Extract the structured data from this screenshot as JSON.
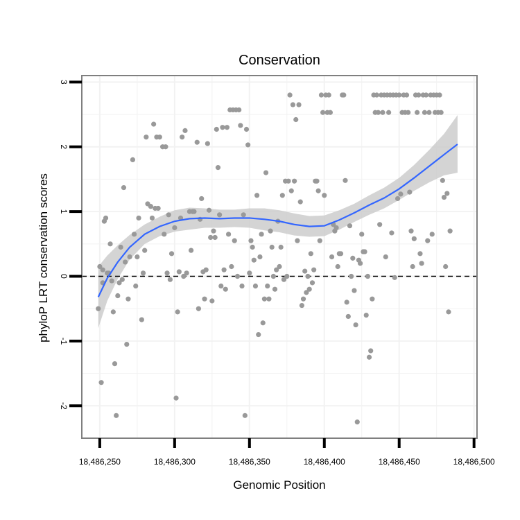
{
  "chart_data": {
    "type": "scatter",
    "title": "Conservation",
    "xlabel": "Genomic Position",
    "ylabel": "phyloP LRT conservation scores",
    "xlim": [
      18486238,
      18486502
    ],
    "ylim": [
      -2.5,
      3.1
    ],
    "x_ticks": [
      18486250,
      18486300,
      18486350,
      18486400,
      18486450,
      18486500
    ],
    "x_tick_labels": [
      "18,486,250",
      "18,486,300",
      "18,486,350",
      "18,486,400",
      "18,486,450",
      "18,486,500"
    ],
    "y_ticks": [
      -2,
      -1,
      0,
      1,
      2,
      3
    ],
    "y_tick_labels": [
      "-2",
      "-1",
      "0",
      "1",
      "2",
      "3"
    ],
    "grid": true,
    "reference_line": {
      "y": 0,
      "style": "dashed"
    },
    "colors": {
      "points": "#999999",
      "smooth": "#3366ff",
      "band": "#cccccc",
      "grid": "#f2f2f2",
      "frame": "#7f7f7f"
    },
    "points": [
      [
        18486249,
        -0.5
      ],
      [
        18486250,
        0.15
      ],
      [
        18486251,
        -1.64
      ],
      [
        18486252,
        0.1
      ],
      [
        18486252,
        -0.1
      ],
      [
        18486253,
        0.85
      ],
      [
        18486254,
        0.9
      ],
      [
        18486255,
        0.05
      ],
      [
        18486256,
        0.05
      ],
      [
        18486257,
        0.5
      ],
      [
        18486258,
        -0.07
      ],
      [
        18486259,
        -0.55
      ],
      [
        18486260,
        -1.35
      ],
      [
        18486261,
        -2.15
      ],
      [
        18486262,
        -0.3
      ],
      [
        18486263,
        -0.1
      ],
      [
        18486264,
        0.45
      ],
      [
        18486265,
        -0.05
      ],
      [
        18486266,
        1.37
      ],
      [
        18486267,
        0.22
      ],
      [
        18486268,
        -1.05
      ],
      [
        18486269,
        -0.35
      ],
      [
        18486270,
        0.3
      ],
      [
        18486272,
        1.8
      ],
      [
        18486273,
        0.65
      ],
      [
        18486274,
        -0.15
      ],
      [
        18486275,
        0.3
      ],
      [
        18486276,
        0.9
      ],
      [
        18486278,
        -0.67
      ],
      [
        18486279,
        0.05
      ],
      [
        18486280,
        0.4
      ],
      [
        18486281,
        2.15
      ],
      [
        18486282,
        1.12
      ],
      [
        18486284,
        1.08
      ],
      [
        18486285,
        0.9
      ],
      [
        18486286,
        2.35
      ],
      [
        18486287,
        1.05
      ],
      [
        18486288,
        2.15
      ],
      [
        18486289,
        1.05
      ],
      [
        18486290,
        2.15
      ],
      [
        18486292,
        2.0
      ],
      [
        18486293,
        0.65
      ],
      [
        18486294,
        2.0
      ],
      [
        18486295,
        0.05
      ],
      [
        18486296,
        0.95
      ],
      [
        18486297,
        -0.05
      ],
      [
        18486298,
        0.35
      ],
      [
        18486300,
        0.75
      ],
      [
        18486301,
        -1.88
      ],
      [
        18486302,
        -0.55
      ],
      [
        18486303,
        0.07
      ],
      [
        18486304,
        0.9
      ],
      [
        18486305,
        2.15
      ],
      [
        18486306,
        0.0
      ],
      [
        18486307,
        2.25
      ],
      [
        18486308,
        0.05
      ],
      [
        18486310,
        1.0
      ],
      [
        18486311,
        0.4
      ],
      [
        18486312,
        1.0
      ],
      [
        18486313,
        1.0
      ],
      [
        18486315,
        2.07
      ],
      [
        18486316,
        -0.5
      ],
      [
        18486317,
        0.88
      ],
      [
        18486318,
        1.2
      ],
      [
        18486319,
        0.07
      ],
      [
        18486320,
        -0.35
      ],
      [
        18486321,
        0.1
      ],
      [
        18486322,
        2.05
      ],
      [
        18486323,
        1.02
      ],
      [
        18486324,
        0.6
      ],
      [
        18486325,
        -0.38
      ],
      [
        18486326,
        0.7
      ],
      [
        18486327,
        0.6
      ],
      [
        18486328,
        2.27
      ],
      [
        18486329,
        1.68
      ],
      [
        18486330,
        0.95
      ],
      [
        18486331,
        -0.15
      ],
      [
        18486332,
        2.3
      ],
      [
        18486333,
        0.1
      ],
      [
        18486334,
        -0.2
      ],
      [
        18486335,
        2.3
      ],
      [
        18486336,
        0.65
      ],
      [
        18486337,
        2.57
      ],
      [
        18486338,
        0.15
      ],
      [
        18486339,
        2.57
      ],
      [
        18486340,
        0.55
      ],
      [
        18486341,
        2.57
      ],
      [
        18486342,
        0.0
      ],
      [
        18486343,
        2.57
      ],
      [
        18486344,
        2.33
      ],
      [
        18486345,
        -0.15
      ],
      [
        18486346,
        0.95
      ],
      [
        18486347,
        -2.15
      ],
      [
        18486348,
        2.27
      ],
      [
        18486349,
        2.03
      ],
      [
        18486350,
        0.05
      ],
      [
        18486351,
        0.55
      ],
      [
        18486352,
        0.45
      ],
      [
        18486353,
        0.25
      ],
      [
        18486354,
        -0.15
      ],
      [
        18486355,
        1.25
      ],
      [
        18486356,
        -0.9
      ],
      [
        18486357,
        0.3
      ],
      [
        18486358,
        0.65
      ],
      [
        18486359,
        -0.72
      ],
      [
        18486360,
        -0.35
      ],
      [
        18486361,
        1.6
      ],
      [
        18486362,
        -0.15
      ],
      [
        18486363,
        -0.35
      ],
      [
        18486364,
        0.7
      ],
      [
        18486365,
        0.45
      ],
      [
        18486366,
        0.0
      ],
      [
        18486367,
        -0.2
      ],
      [
        18486368,
        0.1
      ],
      [
        18486369,
        0.85
      ],
      [
        18486370,
        0.15
      ],
      [
        18486371,
        0.45
      ],
      [
        18486372,
        1.25
      ],
      [
        18486373,
        -0.05
      ],
      [
        18486374,
        1.47
      ],
      [
        18486375,
        0.0
      ],
      [
        18486376,
        1.47
      ],
      [
        18486377,
        2.8
      ],
      [
        18486378,
        1.32
      ],
      [
        18486379,
        2.65
      ],
      [
        18486380,
        1.47
      ],
      [
        18486381,
        2.42
      ],
      [
        18486382,
        0.55
      ],
      [
        18486383,
        2.65
      ],
      [
        18486384,
        1.15
      ],
      [
        18486385,
        -0.45
      ],
      [
        18486386,
        -0.35
      ],
      [
        18486387,
        0.08
      ],
      [
        18486388,
        -0.25
      ],
      [
        18486389,
        0.0
      ],
      [
        18486390,
        -0.2
      ],
      [
        18486391,
        0.35
      ],
      [
        18486392,
        -0.1
      ],
      [
        18486393,
        0.1
      ],
      [
        18486394,
        1.47
      ],
      [
        18486395,
        1.47
      ],
      [
        18486396,
        1.32
      ],
      [
        18486397,
        0.55
      ],
      [
        18486398,
        2.8
      ],
      [
        18486399,
        2.53
      ],
      [
        18486400,
        1.25
      ],
      [
        18486401,
        2.8
      ],
      [
        18486402,
        2.53
      ],
      [
        18486403,
        2.8
      ],
      [
        18486404,
        2.53
      ],
      [
        18486405,
        0.3
      ],
      [
        18486406,
        0.8
      ],
      [
        18486407,
        0.7
      ],
      [
        18486408,
        0.75
      ],
      [
        18486409,
        0.15
      ],
      [
        18486410,
        0.35
      ],
      [
        18486411,
        0.35
      ],
      [
        18486412,
        2.8
      ],
      [
        18486413,
        2.8
      ],
      [
        18486414,
        1.48
      ],
      [
        18486415,
        -0.4
      ],
      [
        18486416,
        -0.62
      ],
      [
        18486417,
        0.78
      ],
      [
        18486418,
        0.0
      ],
      [
        18486419,
        0.28
      ],
      [
        18486420,
        -0.22
      ],
      [
        18486421,
        -0.75
      ],
      [
        18486422,
        -2.25
      ],
      [
        18486423,
        0.25
      ],
      [
        18486424,
        0.2
      ],
      [
        18486425,
        0.65
      ],
      [
        18486426,
        0.38
      ],
      [
        18486427,
        0.38
      ],
      [
        18486428,
        -0.6
      ],
      [
        18486429,
        0.0
      ],
      [
        18486430,
        -1.25
      ],
      [
        18486431,
        -1.15
      ],
      [
        18486432,
        -0.35
      ],
      [
        18486433,
        2.8
      ],
      [
        18486434,
        2.53
      ],
      [
        18486435,
        2.8
      ],
      [
        18486436,
        2.53
      ],
      [
        18486437,
        0.8
      ],
      [
        18486438,
        2.8
      ],
      [
        18486439,
        2.53
      ],
      [
        18486440,
        2.8
      ],
      [
        18486441,
        0.3
      ],
      [
        18486442,
        2.8
      ],
      [
        18486443,
        2.53
      ],
      [
        18486444,
        2.8
      ],
      [
        18486445,
        0.67
      ],
      [
        18486446,
        2.8
      ],
      [
        18486447,
        -0.02
      ],
      [
        18486448,
        2.8
      ],
      [
        18486449,
        1.2
      ],
      [
        18486450,
        2.8
      ],
      [
        18486451,
        1.27
      ],
      [
        18486452,
        2.53
      ],
      [
        18486453,
        2.8
      ],
      [
        18486454,
        2.53
      ],
      [
        18486455,
        2.8
      ],
      [
        18486456,
        2.53
      ],
      [
        18486457,
        1.3
      ],
      [
        18486458,
        0.7
      ],
      [
        18486459,
        0.15
      ],
      [
        18486460,
        0.58
      ],
      [
        18486461,
        2.8
      ],
      [
        18486462,
        2.53
      ],
      [
        18486463,
        2.8
      ],
      [
        18486464,
        0.35
      ],
      [
        18486465,
        0.2
      ],
      [
        18486466,
        2.8
      ],
      [
        18486467,
        2.53
      ],
      [
        18486468,
        2.8
      ],
      [
        18486469,
        0.55
      ],
      [
        18486470,
        2.53
      ],
      [
        18486471,
        2.8
      ],
      [
        18486472,
        0.65
      ],
      [
        18486473,
        2.8
      ],
      [
        18486474,
        2.53
      ],
      [
        18486475,
        2.8
      ],
      [
        18486476,
        2.53
      ],
      [
        18486477,
        2.8
      ],
      [
        18486478,
        2.53
      ],
      [
        18486479,
        1.48
      ],
      [
        18486480,
        1.22
      ],
      [
        18486481,
        0.15
      ],
      [
        18486482,
        1.28
      ],
      [
        18486483,
        -0.55
      ],
      [
        18486484,
        0.7
      ]
    ],
    "smooth": [
      [
        18486249,
        -0.32
      ],
      [
        18486255,
        -0.03
      ],
      [
        18486262,
        0.22
      ],
      [
        18486270,
        0.45
      ],
      [
        18486280,
        0.65
      ],
      [
        18486290,
        0.77
      ],
      [
        18486300,
        0.85
      ],
      [
        18486310,
        0.89
      ],
      [
        18486320,
        0.9
      ],
      [
        18486330,
        0.89
      ],
      [
        18486340,
        0.9
      ],
      [
        18486350,
        0.9
      ],
      [
        18486360,
        0.88
      ],
      [
        18486370,
        0.85
      ],
      [
        18486380,
        0.8
      ],
      [
        18486390,
        0.77
      ],
      [
        18486400,
        0.78
      ],
      [
        18486410,
        0.87
      ],
      [
        18486420,
        0.98
      ],
      [
        18486430,
        1.1
      ],
      [
        18486440,
        1.21
      ],
      [
        18486450,
        1.35
      ],
      [
        18486460,
        1.52
      ],
      [
        18486470,
        1.7
      ],
      [
        18486480,
        1.88
      ],
      [
        18486489,
        2.04
      ]
    ],
    "band_upper": [
      [
        18486249,
        0.15
      ],
      [
        18486255,
        0.32
      ],
      [
        18486262,
        0.48
      ],
      [
        18486270,
        0.64
      ],
      [
        18486280,
        0.8
      ],
      [
        18486290,
        0.92
      ],
      [
        18486300,
        1.02
      ],
      [
        18486310,
        1.06
      ],
      [
        18486320,
        1.05
      ],
      [
        18486330,
        1.03
      ],
      [
        18486340,
        1.03
      ],
      [
        18486350,
        1.05
      ],
      [
        18486360,
        1.05
      ],
      [
        18486370,
        1.02
      ],
      [
        18486380,
        0.97
      ],
      [
        18486390,
        0.93
      ],
      [
        18486400,
        0.94
      ],
      [
        18486410,
        1.02
      ],
      [
        18486420,
        1.12
      ],
      [
        18486430,
        1.25
      ],
      [
        18486440,
        1.37
      ],
      [
        18486450,
        1.52
      ],
      [
        18486460,
        1.72
      ],
      [
        18486470,
        1.95
      ],
      [
        18486480,
        2.2
      ],
      [
        18486489,
        2.49
      ]
    ],
    "band_lower": [
      [
        18486249,
        -0.8
      ],
      [
        18486255,
        -0.38
      ],
      [
        18486262,
        -0.04
      ],
      [
        18486270,
        0.26
      ],
      [
        18486280,
        0.5
      ],
      [
        18486290,
        0.62
      ],
      [
        18486300,
        0.69
      ],
      [
        18486310,
        0.72
      ],
      [
        18486320,
        0.75
      ],
      [
        18486330,
        0.75
      ],
      [
        18486340,
        0.76
      ],
      [
        18486350,
        0.75
      ],
      [
        18486360,
        0.71
      ],
      [
        18486370,
        0.68
      ],
      [
        18486380,
        0.63
      ],
      [
        18486390,
        0.61
      ],
      [
        18486400,
        0.62
      ],
      [
        18486410,
        0.72
      ],
      [
        18486420,
        0.84
      ],
      [
        18486430,
        0.95
      ],
      [
        18486440,
        1.05
      ],
      [
        18486450,
        1.18
      ],
      [
        18486460,
        1.32
      ],
      [
        18486470,
        1.45
      ],
      [
        18486480,
        1.56
      ],
      [
        18486489,
        1.6
      ]
    ]
  }
}
